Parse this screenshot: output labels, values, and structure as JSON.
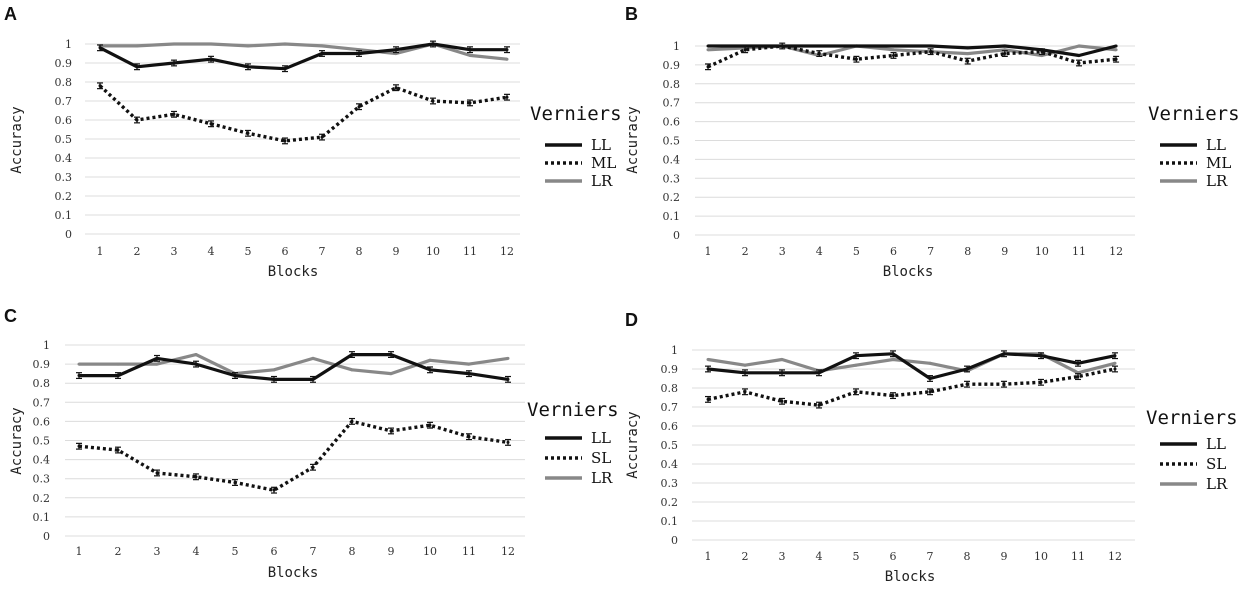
{
  "chart_data": [
    {
      "panel": "A",
      "type": "line",
      "xlabel": "Blocks",
      "ylabel": "Accuracy",
      "ylim": [
        0,
        1
      ],
      "yticks": [
        "0",
        "0.1",
        "0.2",
        "0.3",
        "0.4",
        "0.5",
        "0.6",
        "0.7",
        "0.8",
        "0.9",
        "1"
      ],
      "categories": [
        "1",
        "2",
        "3",
        "4",
        "5",
        "6",
        "7",
        "8",
        "9",
        "10",
        "11",
        "12"
      ],
      "legend_title": "Verniers",
      "series": [
        {
          "name": "LL",
          "values": [
            0.98,
            0.88,
            0.9,
            0.92,
            0.88,
            0.87,
            0.95,
            0.95,
            0.97,
            1.0,
            0.97,
            0.97
          ],
          "color": "#111111",
          "style": "solid",
          "error_bars": true
        },
        {
          "name": "ML",
          "values": [
            0.78,
            0.6,
            0.63,
            0.58,
            0.53,
            0.49,
            0.51,
            0.67,
            0.77,
            0.7,
            0.69,
            0.72
          ],
          "color": "#111111",
          "style": "dotted",
          "error_bars": true
        },
        {
          "name": "LR",
          "values": [
            0.99,
            0.99,
            1.0,
            1.0,
            0.99,
            1.0,
            0.99,
            0.97,
            0.95,
            1.0,
            0.94,
            0.92
          ],
          "color": "#888888",
          "style": "solid",
          "error_bars": false
        }
      ]
    },
    {
      "panel": "B",
      "type": "line",
      "xlabel": "Blocks",
      "ylabel": "Accuracy",
      "ylim": [
        0,
        1
      ],
      "yticks": [
        "0",
        "0.1",
        "0.2",
        "0.3",
        "0.4",
        "0.5",
        "0.6",
        "0.7",
        "0.8",
        "0.9",
        "1"
      ],
      "categories": [
        "1",
        "2",
        "3",
        "4",
        "5",
        "6",
        "7",
        "8",
        "9",
        "10",
        "11",
        "12"
      ],
      "legend_title": "Verniers",
      "series": [
        {
          "name": "LL",
          "values": [
            1.0,
            1.0,
            1.0,
            1.0,
            1.0,
            1.0,
            1.0,
            0.99,
            1.0,
            0.98,
            0.95,
            1.0
          ],
          "color": "#111111",
          "style": "solid",
          "error_bars": false
        },
        {
          "name": "ML",
          "values": [
            0.89,
            0.98,
            1.0,
            0.96,
            0.93,
            0.95,
            0.97,
            0.92,
            0.96,
            0.97,
            0.91,
            0.93
          ],
          "color": "#111111",
          "style": "dotted",
          "error_bars": true
        },
        {
          "name": "LR",
          "values": [
            0.98,
            0.99,
            1.0,
            0.95,
            1.0,
            0.98,
            0.97,
            0.96,
            0.98,
            0.95,
            1.0,
            0.98
          ],
          "color": "#888888",
          "style": "solid",
          "error_bars": false
        }
      ]
    },
    {
      "panel": "C",
      "type": "line",
      "xlabel": "Blocks",
      "ylabel": "Accuracy",
      "ylim": [
        0,
        1
      ],
      "yticks": [
        "0",
        "0.1",
        "0.2",
        "0.3",
        "0.4",
        "0.5",
        "0.6",
        "0.7",
        "0.8",
        "0.9",
        "1"
      ],
      "categories": [
        "1",
        "2",
        "3",
        "4",
        "5",
        "6",
        "7",
        "8",
        "9",
        "10",
        "11",
        "12"
      ],
      "legend_title": "Verniers",
      "series": [
        {
          "name": "LL",
          "values": [
            0.84,
            0.84,
            0.93,
            0.9,
            0.84,
            0.82,
            0.82,
            0.95,
            0.95,
            0.87,
            0.85,
            0.82
          ],
          "color": "#111111",
          "style": "solid",
          "error_bars": true
        },
        {
          "name": "SL",
          "values": [
            0.47,
            0.45,
            0.33,
            0.31,
            0.28,
            0.24,
            0.36,
            0.6,
            0.55,
            0.58,
            0.52,
            0.49
          ],
          "color": "#111111",
          "style": "dotted",
          "error_bars": true
        },
        {
          "name": "LR",
          "values": [
            0.9,
            0.9,
            0.9,
            0.95,
            0.85,
            0.87,
            0.93,
            0.87,
            0.85,
            0.92,
            0.9,
            0.93
          ],
          "color": "#888888",
          "style": "solid",
          "error_bars": false
        }
      ]
    },
    {
      "panel": "D",
      "type": "line",
      "xlabel": "Blocks",
      "ylabel": "Accuracy",
      "ylim": [
        0,
        1
      ],
      "yticks": [
        "0",
        "0.1",
        "0.2",
        "0.3",
        "0.4",
        "0.5",
        "0.6",
        "0.7",
        "0.8",
        "0.9",
        "1"
      ],
      "categories": [
        "1",
        "2",
        "3",
        "4",
        "5",
        "6",
        "7",
        "8",
        "9",
        "10",
        "11",
        "12"
      ],
      "legend_title": "Verniers",
      "series": [
        {
          "name": "LL",
          "values": [
            0.9,
            0.88,
            0.88,
            0.88,
            0.97,
            0.98,
            0.85,
            0.9,
            0.98,
            0.97,
            0.93,
            0.97
          ],
          "color": "#111111",
          "style": "solid",
          "error_bars": true
        },
        {
          "name": "SL",
          "values": [
            0.74,
            0.78,
            0.73,
            0.71,
            0.78,
            0.76,
            0.78,
            0.82,
            0.82,
            0.83,
            0.86,
            0.9
          ],
          "color": "#111111",
          "style": "dotted",
          "error_bars": true
        },
        {
          "name": "LR",
          "values": [
            0.95,
            0.92,
            0.95,
            0.89,
            0.92,
            0.95,
            0.93,
            0.89,
            0.98,
            0.98,
            0.88,
            0.93
          ],
          "color": "#888888",
          "style": "solid",
          "error_bars": false
        }
      ]
    }
  ]
}
